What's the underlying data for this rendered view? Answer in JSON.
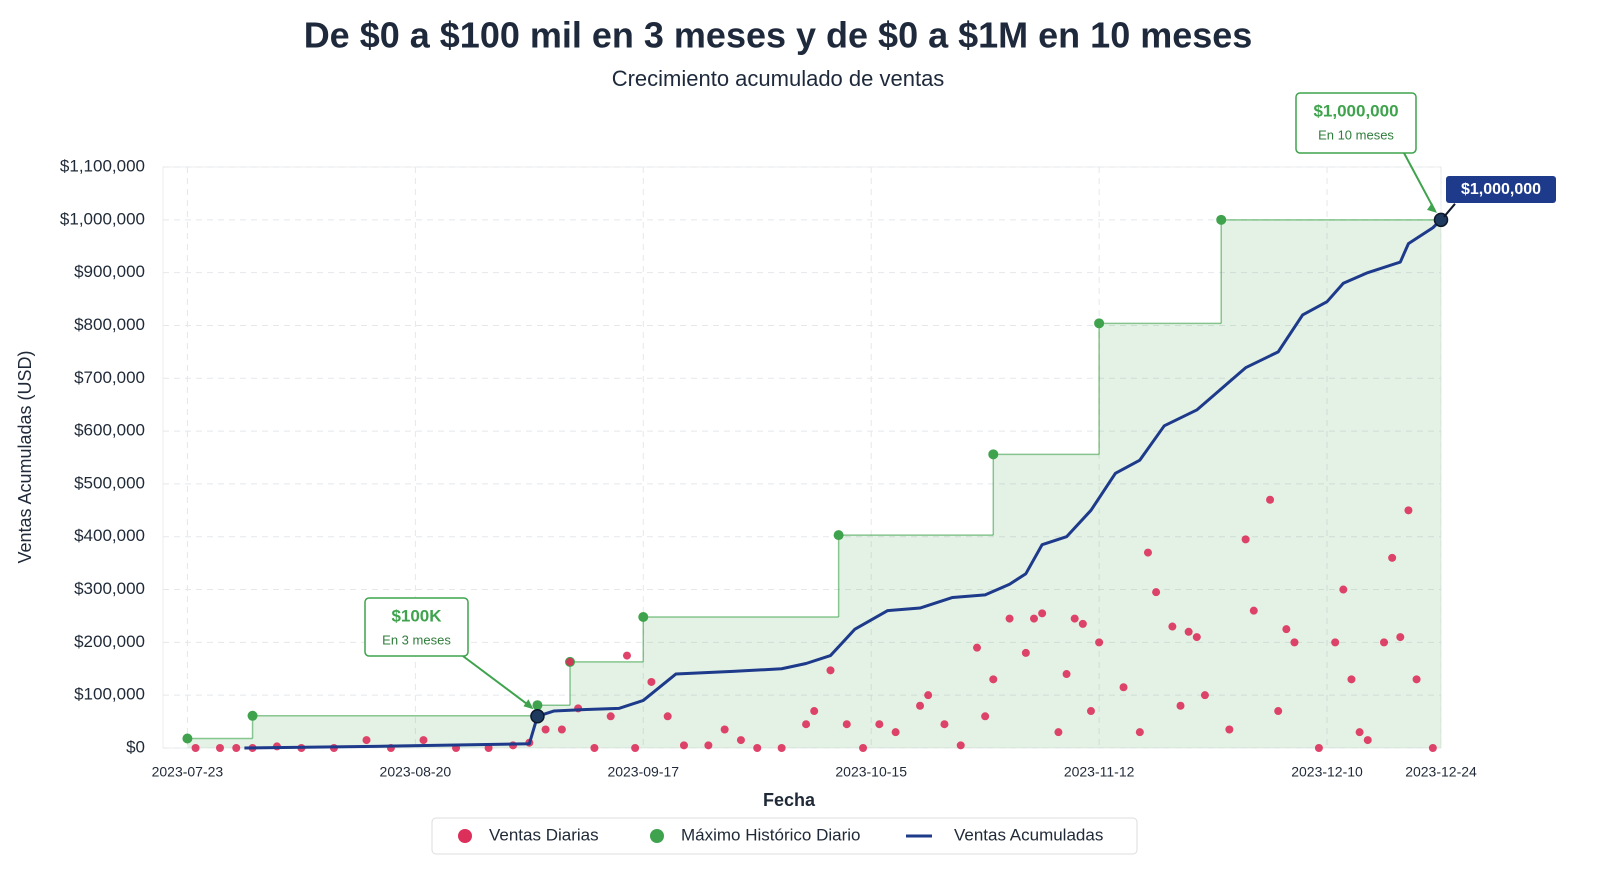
{
  "chart_data": {
    "type": "combo",
    "title": "De $0 a $100 mil en 3 meses y de $0 a $1M en 10 meses",
    "subtitle": "Crecimiento acumulado de ventas",
    "xlabel": "Fecha",
    "ylabel": "Ventas Acumuladas (USD)",
    "xlim": [
      "2023-07-20",
      "2023-12-24"
    ],
    "xticks": [
      "2023-07-23",
      "2023-08-20",
      "2023-09-17",
      "2023-10-15",
      "2023-11-12",
      "2023-12-10",
      "2023-12-24"
    ],
    "ylim": [
      0,
      1100000
    ],
    "yticks": [
      {
        "value": 0,
        "label": "$0"
      },
      {
        "value": 100000,
        "label": "$100,000"
      },
      {
        "value": 200000,
        "label": "$200,000"
      },
      {
        "value": 300000,
        "label": "$300,000"
      },
      {
        "value": 400000,
        "label": "$400,000"
      },
      {
        "value": 500000,
        "label": "$500,000"
      },
      {
        "value": 600000,
        "label": "$600,000"
      },
      {
        "value": 700000,
        "label": "$700,000"
      },
      {
        "value": 800000,
        "label": "$800,000"
      },
      {
        "value": 900000,
        "label": "$900,000"
      },
      {
        "value": 1000000,
        "label": "$1,000,000"
      },
      {
        "value": 1100000,
        "label": "$1,100,000"
      }
    ],
    "grid": true,
    "legend": "bottom",
    "series": [
      {
        "name": "Ventas Diarias",
        "type": "scatter",
        "color": "#dc2f5a",
        "x": [
          "2023-07-24",
          "2023-07-27",
          "2023-07-29",
          "2023-07-31",
          "2023-08-03",
          "2023-08-06",
          "2023-08-10",
          "2023-08-14",
          "2023-08-17",
          "2023-08-21",
          "2023-08-25",
          "2023-08-29",
          "2023-09-01",
          "2023-09-03",
          "2023-09-05",
          "2023-09-07",
          "2023-09-08",
          "2023-09-09",
          "2023-09-11",
          "2023-09-13",
          "2023-09-15",
          "2023-09-16",
          "2023-09-18",
          "2023-09-20",
          "2023-09-22",
          "2023-09-25",
          "2023-09-27",
          "2023-09-29",
          "2023-10-01",
          "2023-10-04",
          "2023-10-07",
          "2023-10-08",
          "2023-10-10",
          "2023-10-12",
          "2023-10-14",
          "2023-10-16",
          "2023-10-18",
          "2023-10-21",
          "2023-10-22",
          "2023-10-24",
          "2023-10-26",
          "2023-10-28",
          "2023-10-29",
          "2023-10-30",
          "2023-11-01",
          "2023-11-03",
          "2023-11-04",
          "2023-11-05",
          "2023-11-07",
          "2023-11-08",
          "2023-11-09",
          "2023-11-10",
          "2023-11-11",
          "2023-11-12",
          "2023-11-15",
          "2023-11-17",
          "2023-11-18",
          "2023-11-19",
          "2023-11-21",
          "2023-11-22",
          "2023-11-23",
          "2023-11-24",
          "2023-11-25",
          "2023-11-28",
          "2023-11-30",
          "2023-12-01",
          "2023-12-03",
          "2023-12-04",
          "2023-12-05",
          "2023-12-06",
          "2023-12-09",
          "2023-12-11",
          "2023-12-12",
          "2023-12-13",
          "2023-12-14",
          "2023-12-15",
          "2023-12-17",
          "2023-12-18",
          "2023-12-19",
          "2023-12-20",
          "2023-12-21",
          "2023-12-23"
        ],
        "values": [
          0,
          0,
          0,
          0,
          3000,
          0,
          0,
          15000,
          0,
          15000,
          0,
          0,
          5000,
          10000,
          35000,
          35000,
          163000,
          75000,
          0,
          60000,
          175000,
          0,
          125000,
          60000,
          5000,
          5000,
          35000,
          15000,
          0,
          0,
          45000,
          70000,
          147000,
          45000,
          0,
          45000,
          30000,
          80000,
          100000,
          45000,
          5000,
          190000,
          60000,
          130000,
          245000,
          180000,
          245000,
          255000,
          30000,
          140000,
          245000,
          235000,
          70000,
          200000,
          115000,
          30000,
          370000,
          295000,
          230000,
          80000,
          220000,
          210000,
          100000,
          35000,
          395000,
          260000,
          470000,
          70000,
          225000,
          200000,
          0,
          200000,
          300000,
          130000,
          30000,
          15000,
          200000,
          360000,
          210000,
          450000,
          130000,
          0
        ]
      },
      {
        "name": "Máximo Histórico Diario",
        "type": "step",
        "color": "#3fa34d",
        "x": [
          "2023-07-23",
          "2023-07-31",
          "2023-09-04",
          "2023-09-08",
          "2023-09-17",
          "2023-10-11",
          "2023-10-30",
          "2023-11-12",
          "2023-11-27",
          "2023-12-24"
        ],
        "values": [
          18000,
          61000,
          81000,
          163000,
          248000,
          403000,
          556000,
          804000,
          1000000,
          1000000
        ]
      },
      {
        "name": "Ventas Acumuladas",
        "type": "line",
        "color": "#1e3a8a",
        "x": [
          "2023-07-30",
          "2023-08-15",
          "2023-09-03",
          "2023-09-04",
          "2023-09-06",
          "2023-09-10",
          "2023-09-14",
          "2023-09-17",
          "2023-09-21",
          "2023-09-28",
          "2023-10-04",
          "2023-10-07",
          "2023-10-10",
          "2023-10-13",
          "2023-10-17",
          "2023-10-21",
          "2023-10-25",
          "2023-10-29",
          "2023-11-01",
          "2023-11-03",
          "2023-11-05",
          "2023-11-08",
          "2023-11-11",
          "2023-11-14",
          "2023-11-17",
          "2023-11-20",
          "2023-11-24",
          "2023-11-27",
          "2023-11-30",
          "2023-12-04",
          "2023-12-07",
          "2023-12-10",
          "2023-12-12",
          "2023-12-15",
          "2023-12-19",
          "2023-12-20",
          "2023-12-23",
          "2023-12-24"
        ],
        "values": [
          0,
          3000,
          8000,
          60000,
          70000,
          73000,
          75000,
          90000,
          140000,
          145000,
          150000,
          160000,
          175000,
          225000,
          260000,
          265000,
          285000,
          290000,
          310000,
          330000,
          385000,
          400000,
          450000,
          520000,
          545000,
          610000,
          640000,
          680000,
          720000,
          750000,
          820000,
          845000,
          880000,
          900000,
          920000,
          955000,
          985000,
          1000000
        ]
      }
    ],
    "annotations": [
      {
        "title": "$100K",
        "text": "En 3 meses",
        "x": "2023-09-04",
        "y": 60000
      },
      {
        "title": "$1,000,000",
        "text": "En 10 meses",
        "x": "2023-12-24",
        "y": 1000000
      }
    ],
    "end_label": "$1,000,000"
  }
}
